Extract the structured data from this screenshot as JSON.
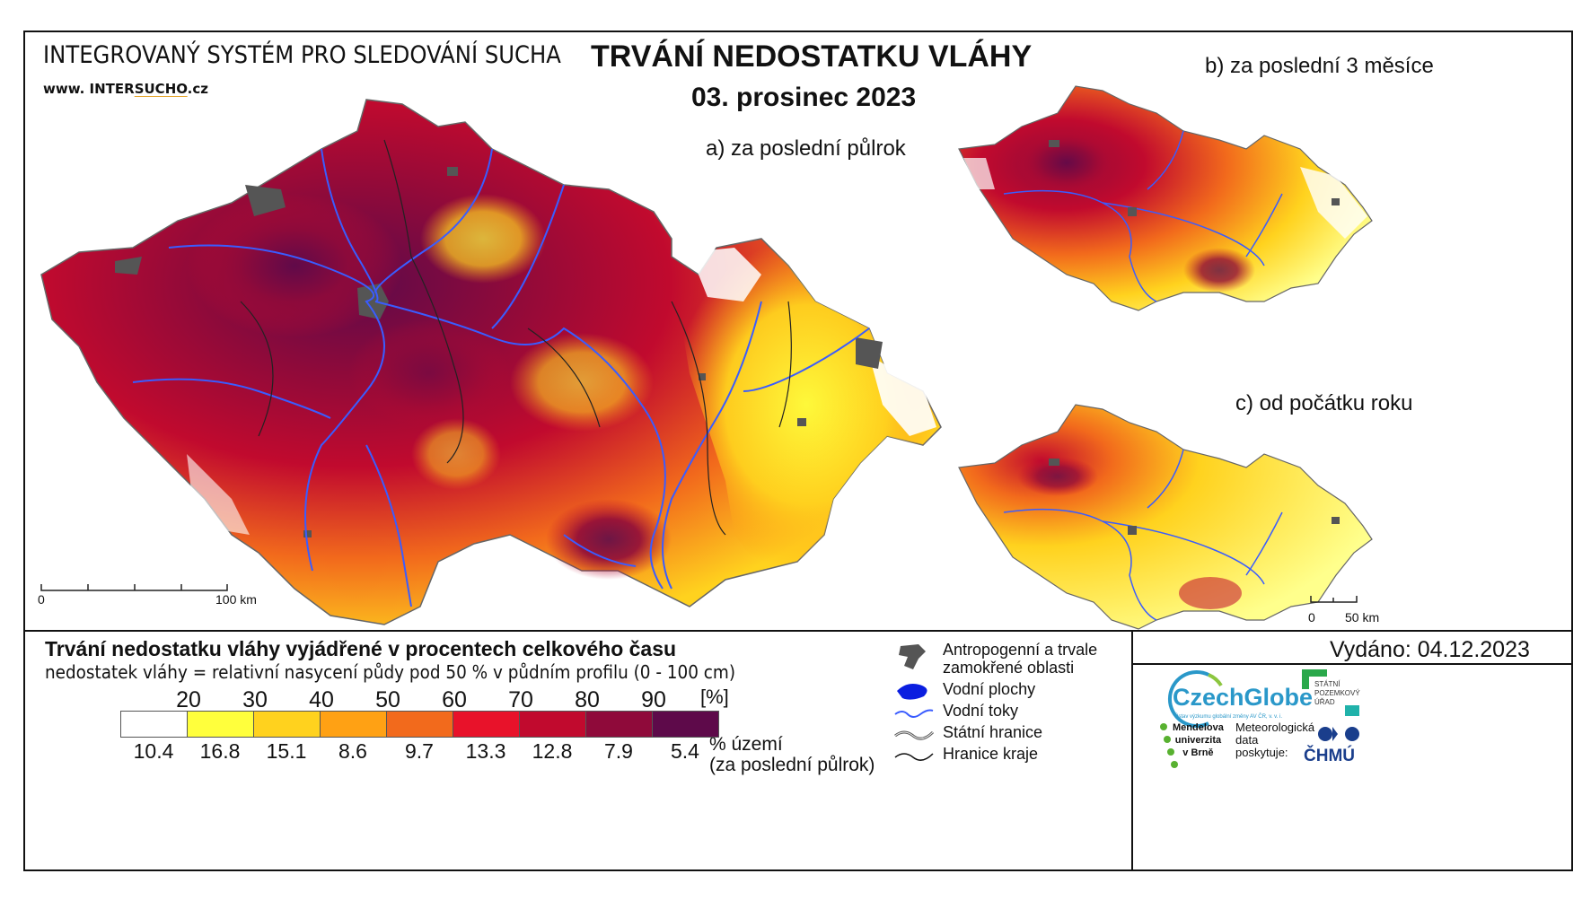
{
  "header": {
    "system_title": "INTEGROVANÝ SYSTÉM PRO SLEDOVÁNÍ SUCHA",
    "website_prefix": "www. INTER",
    "website_underlined": "SUCHO",
    "website_suffix": ".cz",
    "main_title": "TRVÁNÍ NEDOSTATKU VLÁHY",
    "date": "03. prosinec 2023"
  },
  "maps": {
    "a_label": "a) za poslední půlrok",
    "b_label": "b) za poslední 3 měsíce",
    "c_label": "c) od počátku roku",
    "scale_main_zero": "0",
    "scale_main_end": "100 km",
    "scale_small_zero": "0",
    "scale_small_end": "50 km"
  },
  "legend": {
    "title": "Trvání nedostatku vláhy vyjádřené v procentech celkového času",
    "subtitle": "nedostatek vláhy = relativní nasycení půdy pod 50 % v půdním profilu (0 - 100 cm)",
    "unit": "[%]",
    "thresholds": [
      "20",
      "30",
      "40",
      "50",
      "60",
      "70",
      "80",
      "90"
    ],
    "class_colors": [
      "#ffffff",
      "#ffff3c",
      "#ffd21e",
      "#ffa114",
      "#f26a1c",
      "#e8122a",
      "#c10a2e",
      "#8f0a3a",
      "#5e0a4a"
    ],
    "area_percent": [
      "10.4",
      "16.8",
      "15.1",
      "8.6",
      "9.7",
      "13.3",
      "12.8",
      "7.9",
      "5.4"
    ],
    "area_caption_line1": "% území",
    "area_caption_line2": "(za poslední půlrok)"
  },
  "symbols": {
    "anthropogenic_line1": "Antropogenní a trvale",
    "anthropogenic_line2": "zamokřené oblasti",
    "water_bodies": "Vodní plochy",
    "rivers": "Vodní toky",
    "state_border": "Státní hranice",
    "region_border": "Hranice kraje"
  },
  "colors": {
    "anthropogenic": "#555555",
    "water_bodies": "#0a1ee0",
    "rivers": "#3a5cff",
    "border": "#222222"
  },
  "issued": {
    "text": "Vydáno: 04.12.2023"
  },
  "logos": {
    "czechglobe": "CzechGlobe",
    "czechglobe_small": "Ústav výzkumu globální změny AV ČR, v. v. i.",
    "spu_line1": "STÁTNÍ",
    "spu_line2": "POZEMKOVÝ",
    "spu_line3": "ÚŘAD",
    "mendel_line1": "Mendelova",
    "mendel_line2": "univerzita",
    "mendel_line3": "v Brně",
    "met_line1": "Meteorologická",
    "met_line2": "data",
    "met_line3": "poskytuje:",
    "chmu": "ČHMÚ"
  }
}
